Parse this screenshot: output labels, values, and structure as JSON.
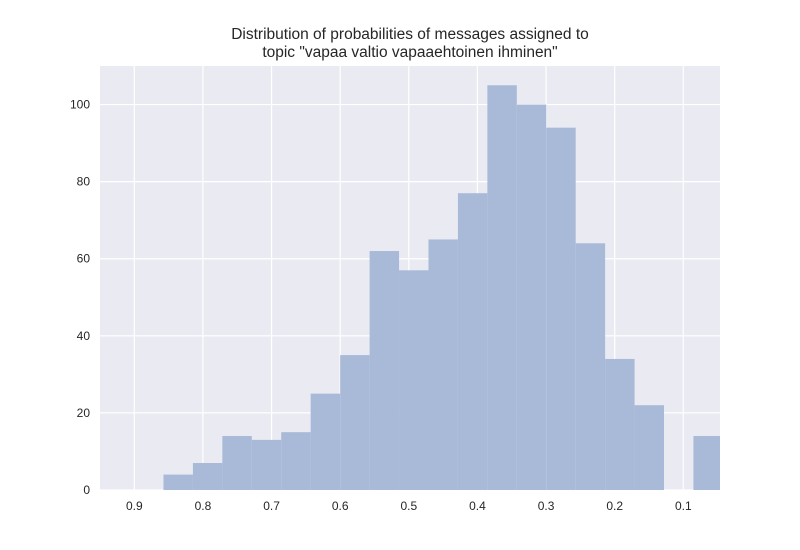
{
  "chart_data": {
    "type": "bar",
    "title": "Distribution of probabilities of messages assigned to",
    "subtitle": "topic \"vapaa valtio vapaaehtoinen ihminen\"",
    "xlabel": "",
    "ylabel": "",
    "x_axis_inverted": true,
    "xlim": [
      0.95,
      0.0465
    ],
    "ylim": [
      0,
      110
    ],
    "x_ticks": [
      0.9,
      0.8,
      0.7,
      0.6,
      0.5,
      0.4,
      0.3,
      0.2,
      0.1
    ],
    "x_tick_labels": [
      "0.9",
      "0.8",
      "0.7",
      "0.6",
      "0.5",
      "0.4",
      "0.3",
      "0.2",
      "0.1"
    ],
    "y_ticks": [
      0,
      20,
      40,
      60,
      80,
      100
    ],
    "y_tick_labels": [
      "0",
      "20",
      "40",
      "60",
      "80",
      "100"
    ],
    "grid": true,
    "bar_color": "#a9b9d8",
    "background_color": "#eaeaf2",
    "grid_color": "#ffffff",
    "bins": [
      {
        "x_start": 0.8575,
        "x_end": 0.8146,
        "value": 4
      },
      {
        "x_start": 0.8146,
        "x_end": 0.7717,
        "value": 7
      },
      {
        "x_start": 0.7717,
        "x_end": 0.7288,
        "value": 14
      },
      {
        "x_start": 0.7288,
        "x_end": 0.6859,
        "value": 13
      },
      {
        "x_start": 0.6859,
        "x_end": 0.643,
        "value": 15
      },
      {
        "x_start": 0.643,
        "x_end": 0.6,
        "value": 25
      },
      {
        "x_start": 0.6,
        "x_end": 0.5571,
        "value": 35
      },
      {
        "x_start": 0.5571,
        "x_end": 0.5142,
        "value": 62
      },
      {
        "x_start": 0.5142,
        "x_end": 0.4713,
        "value": 57
      },
      {
        "x_start": 0.4713,
        "x_end": 0.4284,
        "value": 65
      },
      {
        "x_start": 0.4284,
        "x_end": 0.3855,
        "value": 77
      },
      {
        "x_start": 0.3855,
        "x_end": 0.3426,
        "value": 105
      },
      {
        "x_start": 0.3426,
        "x_end": 0.2997,
        "value": 100
      },
      {
        "x_start": 0.2997,
        "x_end": 0.2568,
        "value": 94
      },
      {
        "x_start": 0.2568,
        "x_end": 0.2139,
        "value": 64
      },
      {
        "x_start": 0.2139,
        "x_end": 0.171,
        "value": 34
      },
      {
        "x_start": 0.171,
        "x_end": 0.1281,
        "value": 22
      },
      {
        "x_start": 0.1281,
        "x_end": 0.0852,
        "value": 0
      },
      {
        "x_start": 0.0852,
        "x_end": 0.0465,
        "value": 14
      }
    ]
  }
}
